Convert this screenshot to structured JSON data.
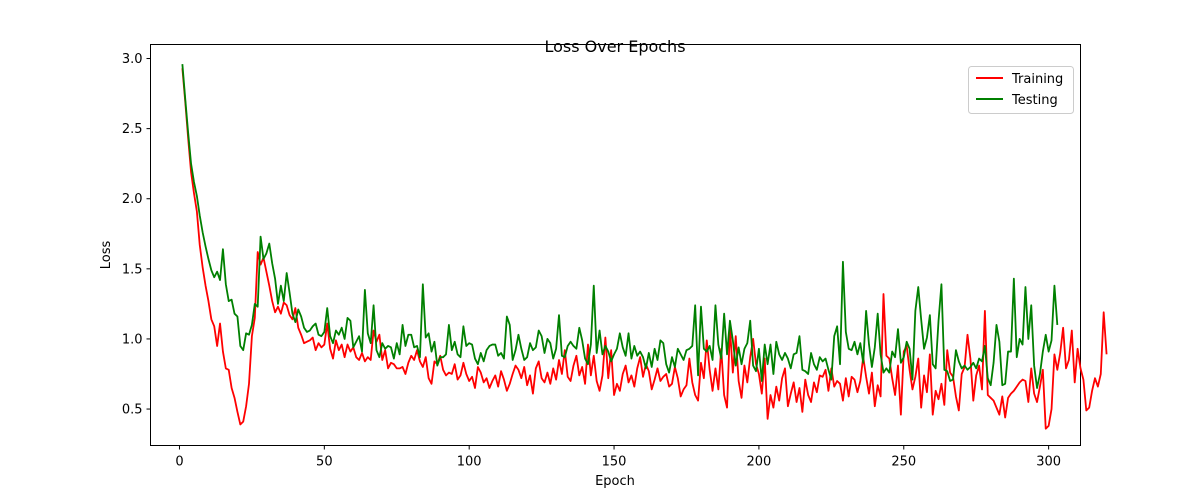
{
  "chart_data": {
    "type": "line",
    "title": "Loss Over Epochs",
    "xlabel": "Epoch",
    "ylabel": "Loss",
    "xlim": [
      -10,
      311
    ],
    "ylim": [
      0.24,
      3.1
    ],
    "xticks": [
      0,
      50,
      100,
      150,
      200,
      250,
      300
    ],
    "yticks": [
      0.5,
      1.0,
      1.5,
      2.0,
      2.5,
      3.0
    ],
    "grid": false,
    "legend_position": "top-right",
    "colors": {
      "Training": "#ff0000",
      "Testing": "#008000"
    },
    "x_start": 1,
    "series": [
      {
        "name": "Training",
        "color": "#ff0000",
        "values": [
          2.93,
          2.69,
          2.43,
          2.19,
          2.04,
          1.91,
          1.67,
          1.51,
          1.38,
          1.27,
          1.14,
          1.09,
          0.95,
          1.11,
          0.91,
          0.79,
          0.78,
          0.65,
          0.58,
          0.48,
          0.39,
          0.41,
          0.52,
          0.68,
          1.02,
          1.15,
          1.62,
          1.53,
          1.58,
          1.48,
          1.38,
          1.27,
          1.19,
          1.23,
          1.18,
          1.26,
          1.24,
          1.17,
          1.14,
          1.22,
          1.08,
          1.03,
          0.97,
          0.98,
          0.99,
          1.01,
          0.92,
          0.97,
          0.94,
          0.96,
          1.11,
          0.93,
          0.86,
          0.99,
          0.92,
          0.96,
          0.87,
          0.96,
          0.91,
          0.94,
          0.87,
          0.85,
          0.9,
          0.84,
          0.87,
          0.85,
          1.06,
          0.98,
          1.03,
          0.85,
          0.92,
          0.79,
          0.83,
          0.82,
          0.79,
          0.79,
          0.8,
          0.75,
          0.83,
          0.88,
          0.85,
          0.92,
          0.84,
          0.8,
          0.87,
          0.72,
          0.68,
          0.84,
          0.82,
          0.88,
          0.78,
          0.74,
          0.76,
          0.75,
          0.82,
          0.71,
          0.74,
          0.83,
          0.75,
          0.7,
          0.73,
          0.65,
          0.8,
          0.76,
          0.69,
          0.72,
          0.65,
          0.7,
          0.74,
          0.66,
          0.77,
          0.71,
          0.63,
          0.68,
          0.75,
          0.81,
          0.78,
          0.72,
          0.8,
          0.67,
          0.74,
          0.61,
          0.79,
          0.84,
          0.72,
          0.69,
          0.76,
          0.68,
          0.79,
          0.71,
          0.85,
          0.75,
          0.92,
          0.73,
          0.7,
          0.81,
          0.88,
          0.74,
          0.8,
          0.68,
          0.96,
          0.74,
          0.88,
          0.7,
          0.63,
          0.74,
          1.01,
          0.72,
          0.92,
          0.6,
          0.68,
          0.63,
          0.75,
          0.81,
          0.69,
          0.74,
          0.66,
          0.79,
          0.87,
          0.73,
          0.82,
          0.77,
          0.64,
          0.71,
          0.79,
          0.7,
          0.73,
          0.75,
          0.66,
          0.68,
          0.8,
          0.72,
          0.59,
          0.64,
          0.67,
          0.86,
          0.69,
          0.6,
          0.56,
          0.83,
          0.72,
          0.99,
          0.78,
          0.63,
          0.79,
          0.64,
          0.93,
          0.6,
          0.51,
          1.08,
          0.76,
          1.02,
          0.7,
          0.58,
          0.81,
          0.69,
          0.87,
          1.0,
          0.82,
          0.75,
          0.61,
          0.86,
          0.43,
          0.6,
          0.51,
          0.66,
          0.56,
          0.72,
          0.79,
          0.52,
          0.61,
          0.69,
          0.55,
          0.65,
          0.48,
          0.71,
          0.6,
          0.55,
          0.69,
          0.62,
          0.74,
          0.73,
          0.78,
          0.63,
          0.79,
          0.66,
          0.7,
          0.68,
          0.56,
          0.72,
          0.59,
          0.73,
          0.71,
          0.62,
          0.7,
          0.87,
          0.73,
          0.61,
          0.76,
          0.52,
          0.67,
          0.59,
          1.32,
          0.88,
          0.86,
          0.72,
          0.6,
          0.81,
          0.46,
          0.91,
          0.95,
          0.78,
          0.64,
          0.73,
          0.86,
          0.51,
          0.74,
          0.62,
          0.89,
          0.46,
          0.63,
          0.57,
          0.68,
          0.53,
          0.92,
          0.76,
          0.73,
          0.59,
          0.49,
          0.75,
          0.8,
          1.03,
          0.86,
          0.56,
          0.74,
          0.81,
          0.64,
          1.2,
          0.6,
          0.58,
          0.56,
          0.51,
          0.46,
          0.59,
          0.44,
          0.58,
          0.61,
          0.63,
          0.66,
          0.69,
          0.71,
          0.7,
          0.55,
          0.79,
          0.61,
          0.55,
          0.66,
          0.78,
          0.36,
          0.38,
          0.5,
          0.89,
          0.78,
          0.9,
          1.08,
          0.79,
          0.85,
          1.06,
          0.69,
          0.93,
          0.79,
          0.71,
          0.49,
          0.51,
          0.63,
          0.72,
          0.66,
          0.75,
          1.19,
          0.89
        ]
      },
      {
        "name": "Testing",
        "color": "#008000",
        "values": [
          2.96,
          2.71,
          2.47,
          2.25,
          2.12,
          2.02,
          1.88,
          1.76,
          1.66,
          1.57,
          1.49,
          1.44,
          1.48,
          1.42,
          1.64,
          1.39,
          1.27,
          1.28,
          1.18,
          1.16,
          0.95,
          0.92,
          1.04,
          1.03,
          1.1,
          1.25,
          1.23,
          1.73,
          1.57,
          1.61,
          1.68,
          1.54,
          1.43,
          1.25,
          1.38,
          1.27,
          1.47,
          1.33,
          1.18,
          1.12,
          1.21,
          1.16,
          1.08,
          1.05,
          1.06,
          1.09,
          1.11,
          1.03,
          1.02,
          1.05,
          1.22,
          1.02,
          0.97,
          1.06,
          1.03,
          1.08,
          1.0,
          1.15,
          1.13,
          0.94,
          0.98,
          1.02,
          0.91,
          1.35,
          1.04,
          0.97,
          1.24,
          0.92,
          0.87,
          0.97,
          0.93,
          0.95,
          0.94,
          0.86,
          0.97,
          0.89,
          1.1,
          0.95,
          1.03,
          1.03,
          0.94,
          0.95,
          0.87,
          1.39,
          1.01,
          1.04,
          0.91,
          0.98,
          0.81,
          0.87,
          0.87,
          0.89,
          1.1,
          0.92,
          0.98,
          0.89,
          0.87,
          1.09,
          0.95,
          0.97,
          0.96,
          0.86,
          0.82,
          0.9,
          0.84,
          0.92,
          0.95,
          0.96,
          0.96,
          0.88,
          0.9,
          0.86,
          1.16,
          1.1,
          0.85,
          0.92,
          1.03,
          0.93,
          0.85,
          0.87,
          0.97,
          0.92,
          0.94,
          1.06,
          1.02,
          0.9,
          1.0,
          0.97,
          0.86,
          0.93,
          1.17,
          0.88,
          0.87,
          0.95,
          0.98,
          0.95,
          0.93,
          1.08,
          0.99,
          0.86,
          0.82,
          0.96,
          1.38,
          0.9,
          1.06,
          0.89,
          0.95,
          0.91,
          0.84,
          0.89,
          0.93,
          1.04,
          0.94,
          0.88,
          1.04,
          0.86,
          0.95,
          0.88,
          0.91,
          0.87,
          0.79,
          0.9,
          0.8,
          0.93,
          0.85,
          0.99,
          0.97,
          0.82,
          0.76,
          0.87,
          0.8,
          0.93,
          0.89,
          0.85,
          0.92,
          0.93,
          0.95,
          1.24,
          0.74,
          1.23,
          0.93,
          0.91,
          0.95,
          0.85,
          1.24,
          0.96,
          0.86,
          1.18,
          0.89,
          1.13,
          0.99,
          0.81,
          0.94,
          0.82,
          0.93,
          0.97,
          1.13,
          0.81,
          0.77,
          0.93,
          0.7,
          0.96,
          0.82,
          0.96,
          0.75,
          0.98,
          0.89,
          0.85,
          0.9,
          0.86,
          0.79,
          0.89,
          0.9,
          1.02,
          0.78,
          0.77,
          0.75,
          0.9,
          0.82,
          0.78,
          0.87,
          0.84,
          0.86,
          0.78,
          0.71,
          1.02,
          1.09,
          0.82,
          1.55,
          1.05,
          0.93,
          0.92,
          0.98,
          0.89,
          0.97,
          0.83,
          1.2,
          0.96,
          0.8,
          0.94,
          1.18,
          0.89,
          0.76,
          0.79,
          0.76,
          0.91,
          0.87,
          1.07,
          0.83,
          0.87,
          0.98,
          0.93,
          0.71,
          1.2,
          1.37,
          1.14,
          0.93,
          1.01,
          1.17,
          0.82,
          0.79,
          1.13,
          1.39,
          0.78,
          0.77,
          0.7,
          0.71,
          0.92,
          0.84,
          0.79,
          0.81,
          0.78,
          0.8,
          0.83,
          0.79,
          0.86,
          0.84,
          0.95,
          0.72,
          0.67,
          0.83,
          1.1,
          0.98,
          0.67,
          0.68,
          0.91,
          0.91,
          1.43,
          0.87,
          1.0,
          0.96,
          1.37,
          1.0,
          1.24,
          0.81,
          0.65,
          0.75,
          0.91,
          1.03,
          0.91,
          0.99,
          1.38,
          1.1
        ]
      }
    ]
  }
}
